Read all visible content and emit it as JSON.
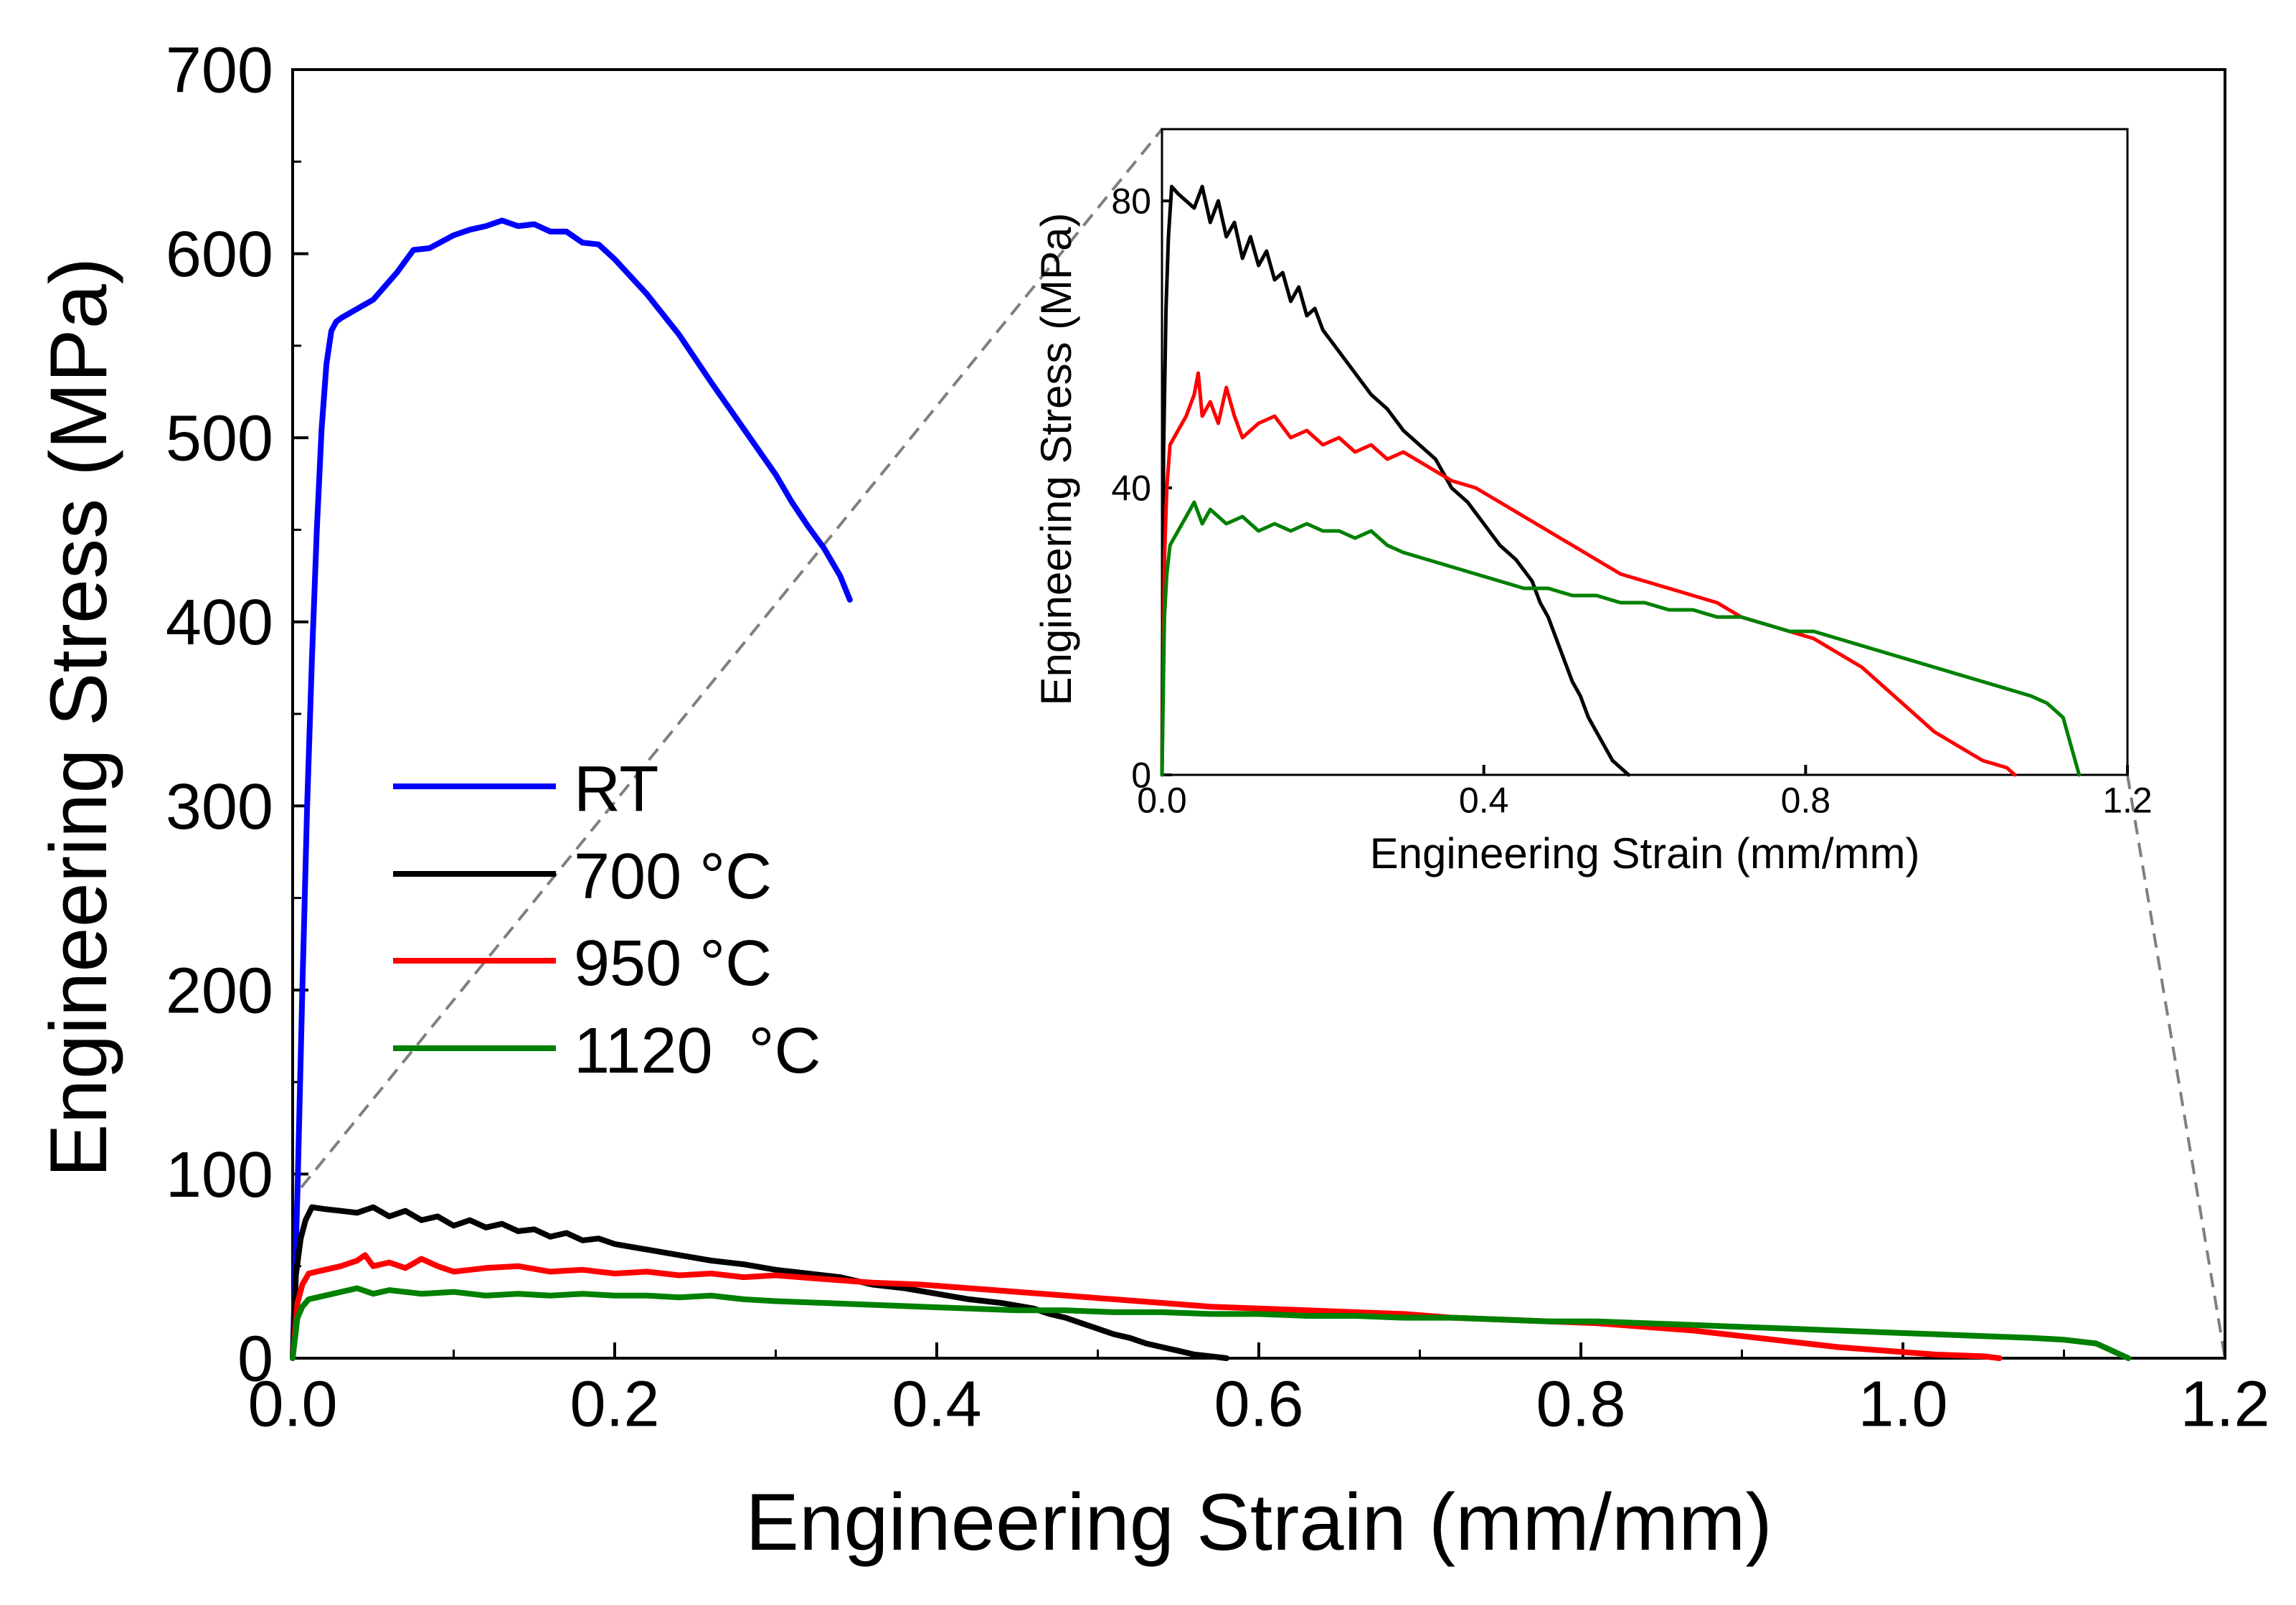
{
  "chart_data": [
    {
      "type": "line",
      "id": "main",
      "xlabel": "Engineering Strain (mm/mm)",
      "ylabel": "Engineering Stress (MPa)",
      "xlim": [
        0,
        1.2
      ],
      "ylim": [
        0,
        700
      ],
      "xticks": [
        0.0,
        0.2,
        0.4,
        0.6,
        0.8,
        1.0,
        1.2
      ],
      "xtick_labels": [
        "0.0",
        "0.2",
        "0.4",
        "0.6",
        "0.8",
        "1.0",
        "1.2"
      ],
      "yticks": [
        0,
        100,
        200,
        300,
        400,
        500,
        600,
        700
      ],
      "ytick_labels": [
        "0",
        "100",
        "200",
        "300",
        "400",
        "500",
        "600",
        "700"
      ],
      "legend": "center-left",
      "series": [
        {
          "name": "RT",
          "color": "#0000ff",
          "x": [
            0,
            0.003,
            0.006,
            0.009,
            0.012,
            0.015,
            0.018,
            0.021,
            0.024,
            0.027,
            0.03,
            0.05,
            0.065,
            0.075,
            0.085,
            0.1,
            0.11,
            0.12,
            0.13,
            0.14,
            0.15,
            0.16,
            0.17,
            0.18,
            0.19,
            0.2,
            0.22,
            0.24,
            0.26,
            0.28,
            0.3,
            0.31,
            0.32,
            0.33,
            0.34,
            0.346
          ],
          "y": [
            0,
            90,
            200,
            300,
            380,
            450,
            505,
            540,
            558,
            563,
            565,
            575,
            590,
            602,
            603,
            610,
            613,
            615,
            618,
            615,
            616,
            612,
            612,
            606,
            605,
            597,
            578,
            556,
            530,
            505,
            480,
            465,
            452,
            440,
            425,
            412
          ]
        },
        {
          "name": "700 °C",
          "color": "#000000",
          "x": [
            0,
            0.002,
            0.005,
            0.008,
            0.012,
            0.02,
            0.03,
            0.04,
            0.05,
            0.06,
            0.07,
            0.08,
            0.09,
            0.1,
            0.11,
            0.12,
            0.13,
            0.14,
            0.15,
            0.16,
            0.17,
            0.18,
            0.19,
            0.2,
            0.22,
            0.24,
            0.26,
            0.28,
            0.3,
            0.32,
            0.34,
            0.36,
            0.38,
            0.4,
            0.42,
            0.44,
            0.46,
            0.47,
            0.48,
            0.49,
            0.5,
            0.51,
            0.52,
            0.53,
            0.54,
            0.55,
            0.56,
            0.57,
            0.58
          ],
          "y": [
            0,
            45,
            65,
            75,
            82,
            81,
            80,
            79,
            82,
            77,
            80,
            75,
            77,
            72,
            75,
            71,
            73,
            69,
            70,
            66,
            68,
            64,
            65,
            62,
            59,
            56,
            53,
            51,
            48,
            46,
            44,
            40,
            38,
            35,
            32,
            30,
            27,
            24,
            22,
            19,
            16,
            13,
            11,
            8,
            6,
            4,
            2,
            1,
            0
          ]
        },
        {
          "name": "950 °C",
          "color": "#ff0000",
          "x": [
            0,
            0.003,
            0.006,
            0.01,
            0.02,
            0.03,
            0.04,
            0.045,
            0.05,
            0.06,
            0.07,
            0.08,
            0.09,
            0.1,
            0.12,
            0.14,
            0.16,
            0.18,
            0.2,
            0.22,
            0.24,
            0.26,
            0.28,
            0.3,
            0.33,
            0.36,
            0.39,
            0.42,
            0.45,
            0.48,
            0.51,
            0.54,
            0.57,
            0.6,
            0.63,
            0.66,
            0.69,
            0.72,
            0.75,
            0.78,
            0.81,
            0.84,
            0.87,
            0.9,
            0.93,
            0.96,
            0.99,
            1.02,
            1.05,
            1.06
          ],
          "y": [
            0,
            30,
            40,
            46,
            48,
            50,
            53,
            56,
            50,
            52,
            49,
            54,
            50,
            47,
            49,
            50,
            47,
            48,
            46,
            47,
            45,
            46,
            44,
            45,
            43,
            41,
            40,
            38,
            36,
            34,
            32,
            30,
            28,
            27,
            26,
            25,
            24,
            22,
            21,
            20,
            19,
            17,
            15,
            12,
            9,
            6,
            4,
            2,
            1,
            0
          ]
        },
        {
          "name": "1120  °C",
          "color": "#008000",
          "x": [
            0,
            0.003,
            0.006,
            0.01,
            0.02,
            0.03,
            0.04,
            0.05,
            0.06,
            0.08,
            0.1,
            0.12,
            0.14,
            0.16,
            0.18,
            0.2,
            0.22,
            0.24,
            0.26,
            0.28,
            0.3,
            0.33,
            0.36,
            0.39,
            0.42,
            0.45,
            0.48,
            0.51,
            0.54,
            0.57,
            0.6,
            0.63,
            0.66,
            0.69,
            0.72,
            0.75,
            0.78,
            0.81,
            0.84,
            0.87,
            0.9,
            0.93,
            0.96,
            0.99,
            1.02,
            1.05,
            1.08,
            1.1,
            1.12,
            1.13,
            1.14
          ],
          "y": [
            0,
            22,
            28,
            32,
            34,
            36,
            38,
            35,
            37,
            35,
            36,
            34,
            35,
            34,
            35,
            34,
            34,
            33,
            34,
            32,
            31,
            30,
            29,
            28,
            27,
            26,
            26,
            25,
            25,
            24,
            24,
            23,
            23,
            22,
            22,
            21,
            20,
            20,
            19,
            18,
            17,
            16,
            15,
            14,
            13,
            12,
            11,
            10,
            8,
            4,
            0
          ]
        }
      ]
    },
    {
      "type": "line",
      "id": "inset",
      "xlabel": "Engineering Strain (mm/mm)",
      "ylabel": "Engineering Stress (MPa)",
      "xlim": [
        0,
        1.2
      ],
      "ylim": [
        0,
        90
      ],
      "xticks": [
        0.0,
        0.4,
        0.8,
        1.2
      ],
      "xtick_labels": [
        "0.0",
        "0.4",
        "0.8",
        "1.2"
      ],
      "yticks": [
        0,
        40,
        80
      ],
      "ytick_labels": [
        "0",
        "40",
        "80"
      ],
      "series_from": "main (700 °C, 950 °C, 1120 °C)"
    }
  ]
}
